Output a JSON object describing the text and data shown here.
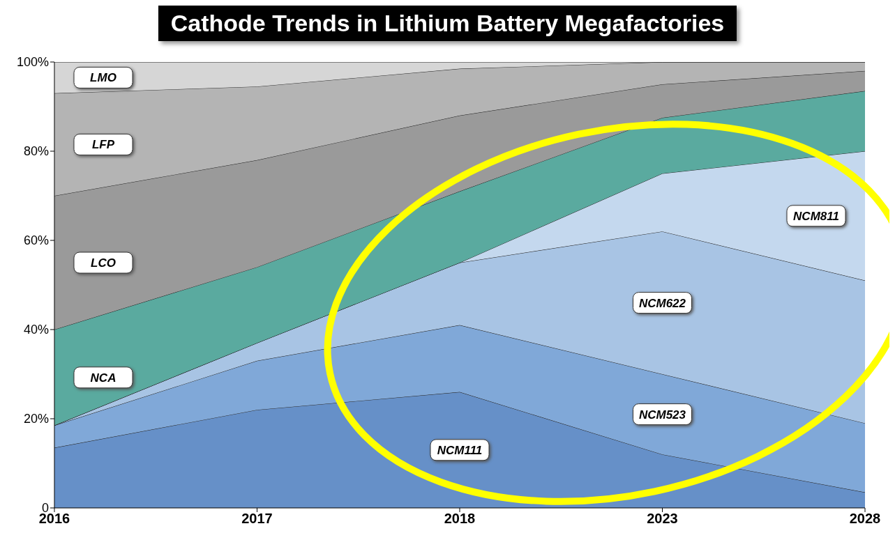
{
  "chart_data": {
    "type": "area",
    "stacked": true,
    "title": "Cathode Trends in Lithium Battery Megafactories",
    "categories": [
      "2016",
      "2017",
      "2018",
      "2023",
      "2028"
    ],
    "series": [
      {
        "name": "NCM111",
        "color": "#6690c8",
        "values": [
          13.5,
          22,
          26,
          12,
          3.5
        ]
      },
      {
        "name": "NCM523",
        "color": "#80a8d8",
        "values": [
          5,
          11,
          15,
          18,
          15.5
        ]
      },
      {
        "name": "NCM622",
        "color": "#a8c4e4",
        "values": [
          0,
          4,
          14,
          32,
          32
        ]
      },
      {
        "name": "NCM811",
        "color": "#c4d8ee",
        "values": [
          0,
          0,
          0,
          13,
          29
        ]
      },
      {
        "name": "NCA",
        "color": "#5aaa9f",
        "values": [
          21.5,
          17,
          16,
          12.5,
          13.5
        ]
      },
      {
        "name": "LCO",
        "color": "#9a9a9a",
        "values": [
          30,
          24,
          17,
          7.5,
          4.5
        ]
      },
      {
        "name": "LFP",
        "color": "#b4b4b4",
        "values": [
          23,
          16.5,
          10.5,
          5,
          2
        ]
      },
      {
        "name": "LMO",
        "color": "#d6d6d6",
        "values": [
          7,
          5.5,
          1.5,
          0,
          0
        ]
      }
    ],
    "ylim": [
      0,
      100
    ],
    "yticks": [
      {
        "value": 0,
        "label": "0"
      },
      {
        "value": 20,
        "label": "20%"
      },
      {
        "value": 40,
        "label": "40%"
      },
      {
        "value": 60,
        "label": "60%"
      },
      {
        "value": 80,
        "label": "80%"
      },
      {
        "value": 100,
        "label": "100%"
      }
    ],
    "grid": false,
    "legend": false
  }
}
